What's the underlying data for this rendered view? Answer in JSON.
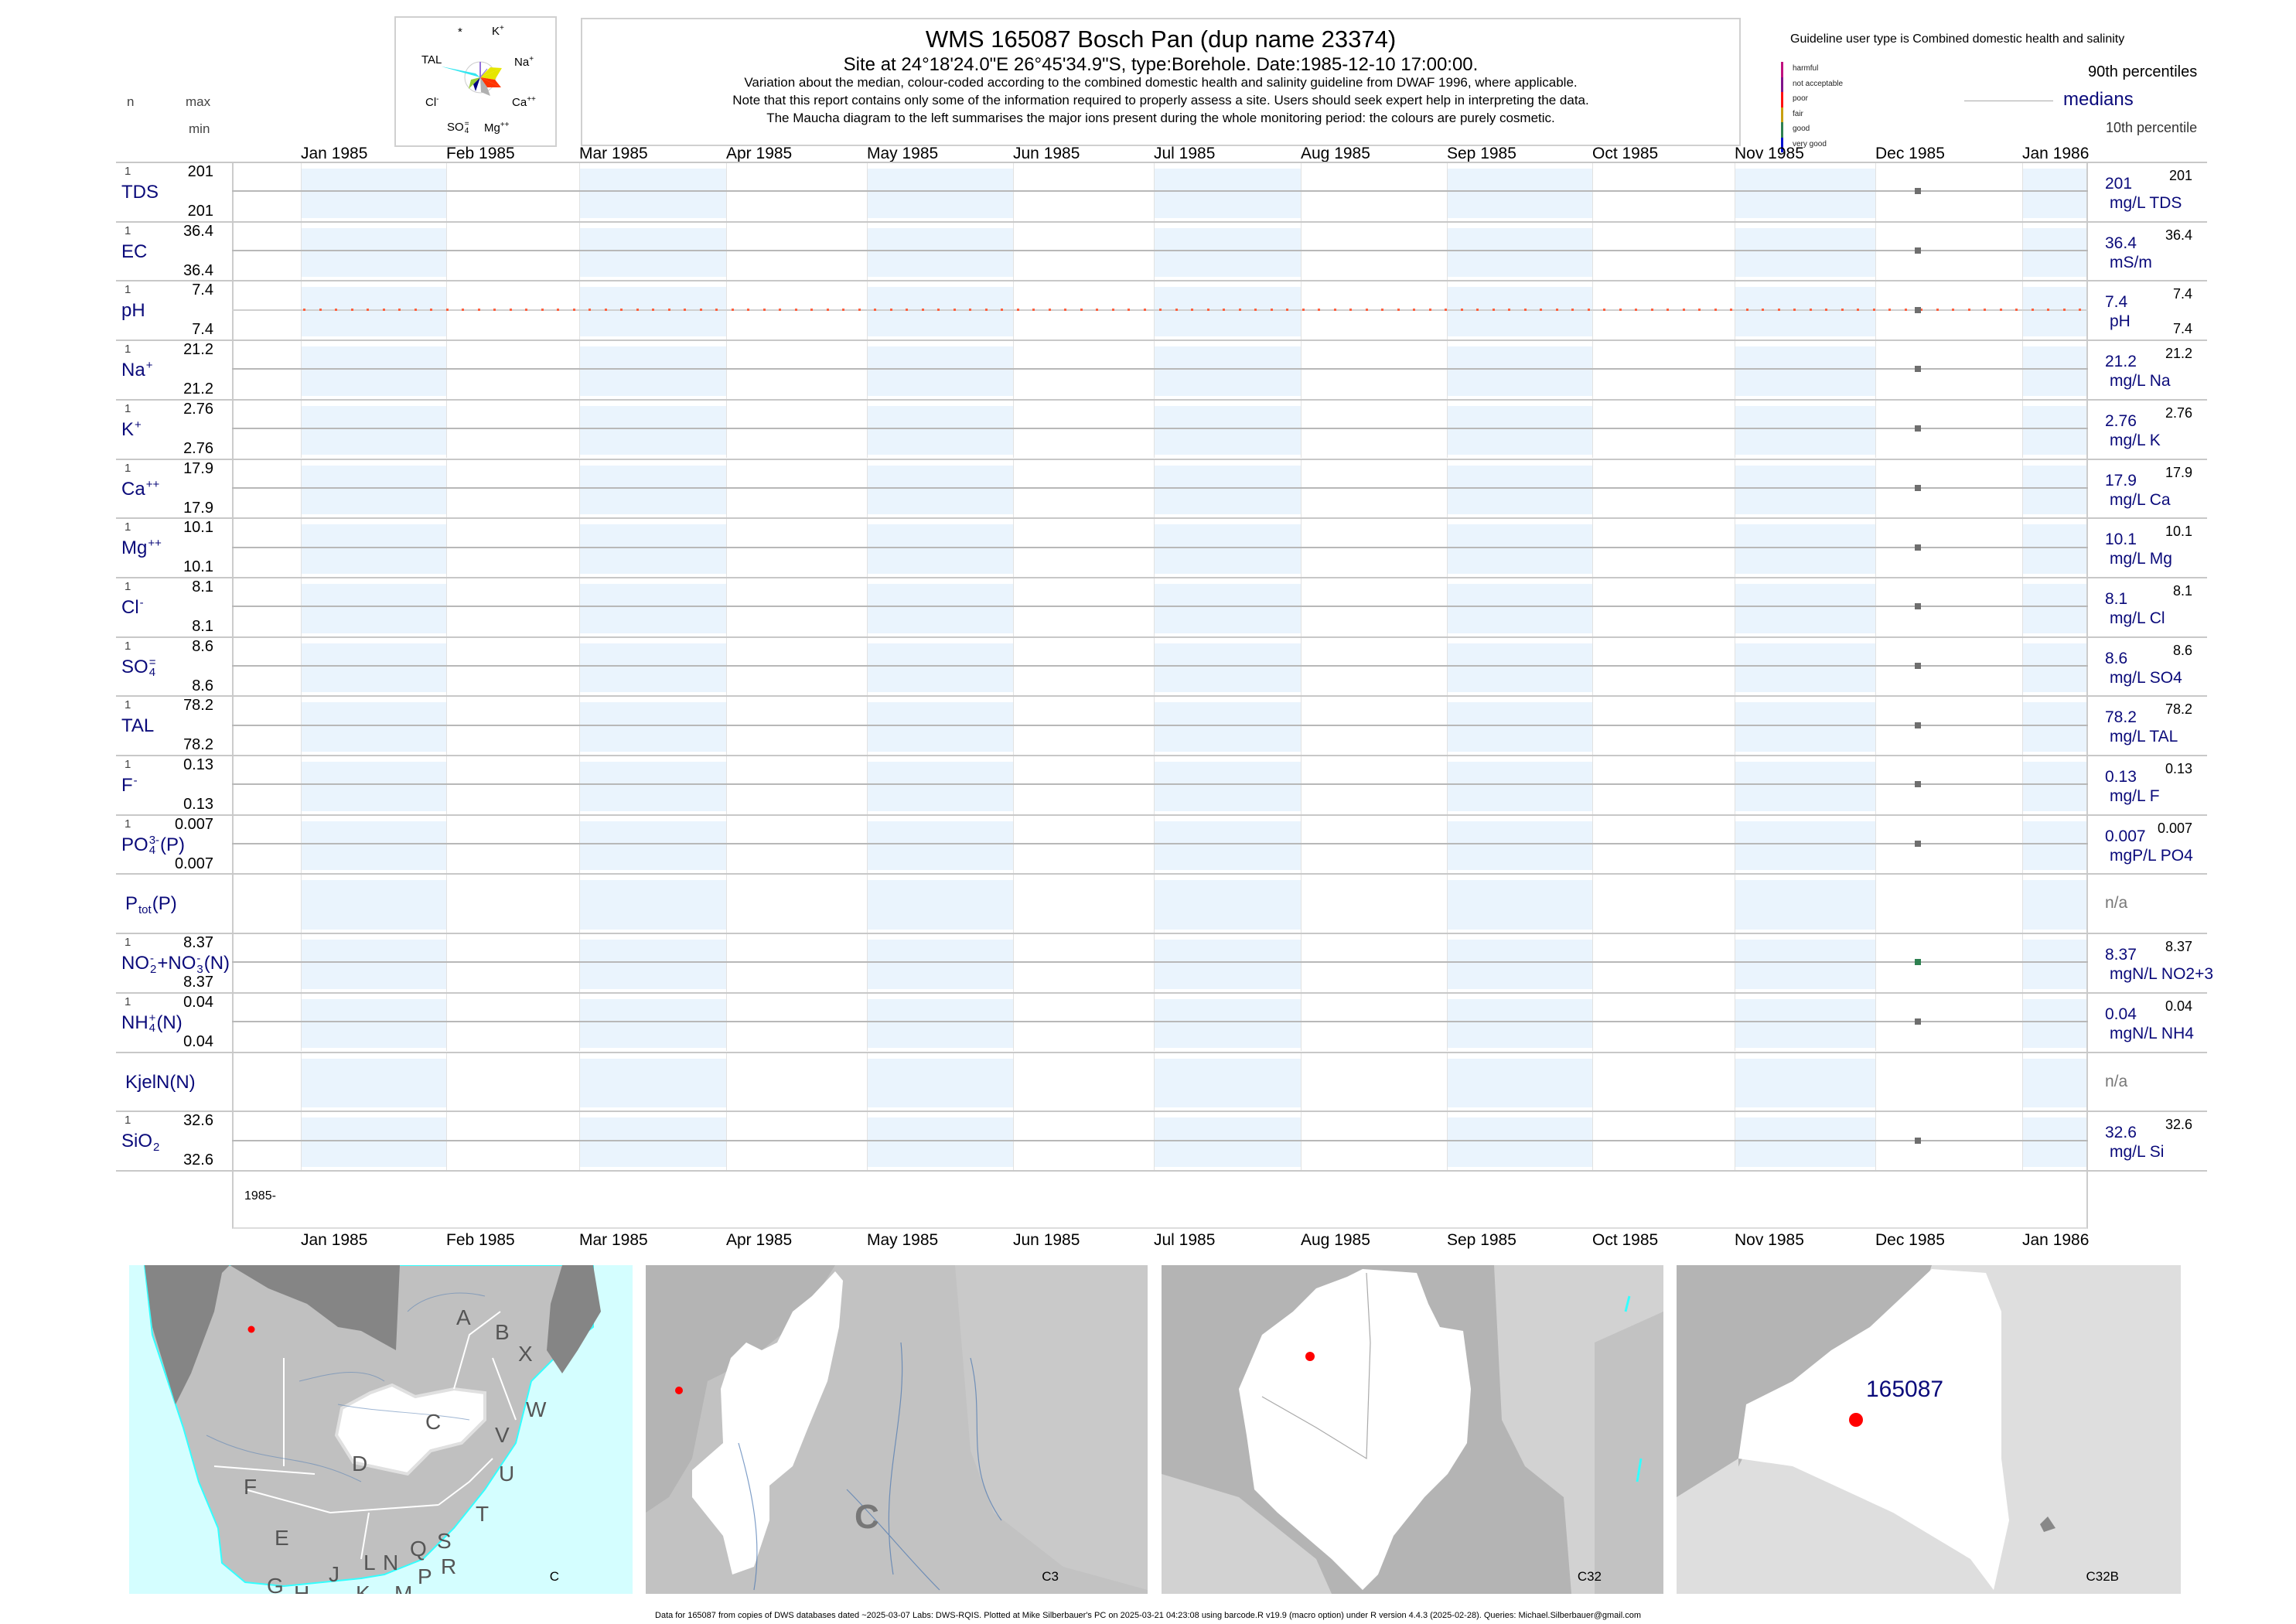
{
  "header": {
    "title": "WMS 165087  Bosch Pan (dup name 23374)",
    "subtitle": "Site at 24°18'24.0\"E 26°45'34.9\"S, type:Borehole. Date:1985-12-10 17:00:00.",
    "note1": "Variation about the median,  colour-coded according to the combined domestic health and salinity guideline from DWAF 1996, where applicable.",
    "note2": "Note that this report contains only some of the information required to properly assess a site. Users should seek expert help in interpreting the data.",
    "note3": "The Maucha diagram to the left summarises the major ions present during the whole monitoring period: the colours are purely cosmetic."
  },
  "maucha": {
    "labels": {
      "star": "*",
      "k": "K",
      "k_sup": "+",
      "na": "Na",
      "na_sup": "+",
      "ca": "Ca",
      "ca_sup": "++",
      "mg": "Mg",
      "mg_sup": "++",
      "so4": "SO",
      "so4_sub": "4",
      "so4_sup": "=",
      "cl": "Cl",
      "cl_sup": "-",
      "tal": "TAL"
    },
    "colors": {
      "tal": "#33e6f0",
      "na": "#e6e600",
      "ca": "#ff3300",
      "mg": "#b0b0b0",
      "cl": "#9acd32",
      "so4": "#000080",
      "k": "#9370db"
    }
  },
  "column_headers": {
    "n": "n",
    "max": "max",
    "min": "min"
  },
  "legend": {
    "guideline": "Guideline user type is Combined domestic health and salinity",
    "classes": [
      {
        "label": "harmful",
        "color": "#c0107f"
      },
      {
        "label": "not acceptable",
        "color": "#80128a"
      },
      {
        "label": "poor",
        "color": "#ff1010"
      },
      {
        "label": "fair",
        "color": "#c8a010"
      },
      {
        "label": "good",
        "color": "#2e8050"
      },
      {
        "label": "very good",
        "color": "#0010d0"
      }
    ],
    "p90": "90th percentiles",
    "medians": "medians",
    "p10": "10th percentile"
  },
  "chart_data": {
    "type": "scatter",
    "x_axis_ticks": [
      "Jan 1985",
      "Feb 1985",
      "Mar 1985",
      "Apr 1985",
      "May 1985",
      "Jun 1985",
      "Jul 1985",
      "Aug 1985",
      "Sep 1985",
      "Oct 1985",
      "Nov 1985",
      "Dec 1985",
      "Jan 1986"
    ],
    "year_label": "1985-",
    "sample_date": "1985-12-10",
    "shaded_months": [
      "Jan 1985",
      "Mar 1985",
      "May 1985",
      "Jul 1985",
      "Sep 1985",
      "Nov 1985",
      "Jan 1986"
    ],
    "shade_color": "#eaf4fd",
    "series": [
      {
        "label": [
          {
            "t": "TDS"
          }
        ],
        "n": "1",
        "max": "201",
        "min": "201",
        "median": "201",
        "p90": "201",
        "unit": "mg/L TDS",
        "value": 201,
        "marker_color": "#6e6e6e"
      },
      {
        "label": [
          {
            "t": "EC"
          }
        ],
        "n": "1",
        "max": "36.4",
        "min": "36.4",
        "median": "36.4",
        "p90": "36.4",
        "unit": "mS/m",
        "value": 36.4,
        "marker_color": "#6e6e6e"
      },
      {
        "label": [
          {
            "t": "pH"
          }
        ],
        "n": "1",
        "max": "7.4",
        "min": "7.4",
        "median": "7.4",
        "p90": "7.4",
        "p10": "7.4",
        "unit": "pH",
        "value": 7.4,
        "marker_color": "#6e6e6e",
        "guide_line_color": "#ff6040"
      },
      {
        "label": [
          {
            "t": "Na"
          },
          {
            "sup": "+"
          }
        ],
        "n": "1",
        "max": "21.2",
        "min": "21.2",
        "median": "21.2",
        "p90": "21.2",
        "unit": "mg/L Na",
        "value": 21.2,
        "marker_color": "#6e6e6e"
      },
      {
        "label": [
          {
            "t": "K"
          },
          {
            "sup": "+"
          }
        ],
        "n": "1",
        "max": "2.76",
        "min": "2.76",
        "median": "2.76",
        "p90": "2.76",
        "unit": "mg/L K",
        "value": 2.76,
        "marker_color": "#6e6e6e"
      },
      {
        "label": [
          {
            "t": "Ca"
          },
          {
            "sup": "++"
          }
        ],
        "n": "1",
        "max": "17.9",
        "min": "17.9",
        "median": "17.9",
        "p90": "17.9",
        "unit": "mg/L Ca",
        "value": 17.9,
        "marker_color": "#6e6e6e"
      },
      {
        "label": [
          {
            "t": "Mg"
          },
          {
            "sup": "++"
          }
        ],
        "n": "1",
        "max": "10.1",
        "min": "10.1",
        "median": "10.1",
        "p90": "10.1",
        "unit": "mg/L Mg",
        "value": 10.1,
        "marker_color": "#6e6e6e"
      },
      {
        "label": [
          {
            "t": "Cl"
          },
          {
            "sup": "-"
          }
        ],
        "n": "1",
        "max": "8.1",
        "min": "8.1",
        "median": "8.1",
        "p90": "8.1",
        "unit": "mg/L Cl",
        "value": 8.1,
        "marker_color": "#6e6e6e"
      },
      {
        "label": [
          {
            "t": "SO"
          },
          {
            "sup": "=",
            "sub": "4"
          }
        ],
        "n": "1",
        "max": "8.6",
        "min": "8.6",
        "median": "8.6",
        "p90": "8.6",
        "unit": "mg/L SO4",
        "value": 8.6,
        "marker_color": "#6e6e6e"
      },
      {
        "label": [
          {
            "t": "TAL"
          }
        ],
        "n": "1",
        "max": "78.2",
        "min": "78.2",
        "median": "78.2",
        "p90": "78.2",
        "unit": "mg/L TAL",
        "value": 78.2,
        "marker_color": "#6e6e6e"
      },
      {
        "label": [
          {
            "t": "F"
          },
          {
            "sup": "-"
          }
        ],
        "n": "1",
        "max": "0.13",
        "min": "0.13",
        "median": "0.13",
        "p90": "0.13",
        "unit": "mg/L F",
        "value": 0.13,
        "marker_color": "#6e6e6e"
      },
      {
        "label": [
          {
            "t": "PO"
          },
          {
            "sup": "3-",
            "sub": "4"
          },
          {
            "t": "(P)"
          }
        ],
        "n": "1",
        "max": "0.007",
        "min": "0.007",
        "median": "0.007",
        "p90": "0.007",
        "unit": "mgP/L PO4",
        "value": 0.007,
        "marker_color": "#6e6e6e"
      },
      {
        "label": [
          {
            "t": "P"
          },
          {
            "sub": "tot"
          },
          {
            "t": "(P)"
          }
        ],
        "na": "n/a"
      },
      {
        "label": [
          {
            "t": "NO"
          },
          {
            "sup": "-",
            "sub": "2"
          },
          {
            "t": "+NO"
          },
          {
            "sup": "-",
            "sub": "3"
          },
          {
            "t": "(N)"
          }
        ],
        "n": "1",
        "max": "8.37",
        "min": "8.37",
        "median": "8.37",
        "p90": "8.37",
        "unit": "mgN/L NO2+3",
        "value": 8.37,
        "marker_color": "#2e8050"
      },
      {
        "label": [
          {
            "t": "NH"
          },
          {
            "sup": "+",
            "sub": "4"
          },
          {
            "t": "(N)"
          }
        ],
        "n": "1",
        "max": "0.04",
        "min": "0.04",
        "median": "0.04",
        "p90": "0.04",
        "unit": "mgN/L NH4",
        "value": 0.04,
        "marker_color": "#6e6e6e"
      },
      {
        "label": [
          {
            "t": "KjelN(N)"
          }
        ],
        "na": "n/a"
      },
      {
        "label": [
          {
            "t": "SiO"
          },
          {
            "sub": "2"
          }
        ],
        "n": "1",
        "max": "32.6",
        "min": "32.6",
        "median": "32.6",
        "p90": "32.6",
        "unit": "mg/L Si",
        "value": 32.6,
        "marker_color": "#6e6e6e"
      }
    ]
  },
  "maps": {
    "panel1": {
      "caption": "C",
      "regions": [
        "A",
        "B",
        "X",
        "W",
        "C",
        "D",
        "V",
        "U",
        "F",
        "T",
        "E",
        "S",
        "Q",
        "N",
        "L",
        "R",
        "P",
        "J",
        "G",
        "H",
        "K",
        "M"
      ]
    },
    "panel2": {
      "caption": "C3",
      "region_label": "C"
    },
    "panel3": {
      "caption": "C32"
    },
    "panel4": {
      "caption": "C32B",
      "site_label": "165087"
    },
    "site_color": "#ff0000"
  },
  "footer": "Data for 165087 from copies of DWS databases dated ~2025-03-07 Labs: DWS-RQIS. Plotted at Mike Silberbauer's PC on 2025-03-21 04:23:08 using barcode.R v19.9 (macro option) under R version 4.4.3 (2025-02-28). Queries: Michael.Silberbauer@gmail.com"
}
